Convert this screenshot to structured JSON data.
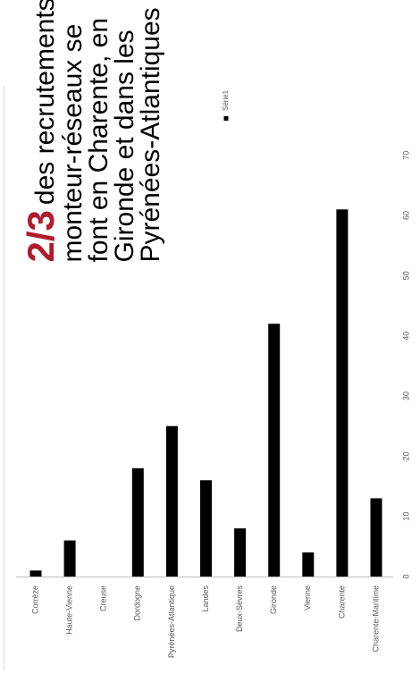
{
  "headline": {
    "highlight": "2/3",
    "lines": [
      "des recrutements de",
      "monteur-réseaux se",
      "font en Charente, en",
      "Gironde et dans les",
      "Pyrénées-Atlantiques"
    ]
  },
  "chart_data": {
    "type": "bar",
    "orientation": "horizontal",
    "categories": [
      "Corrèze",
      "Haute-Vienne",
      "Creuse",
      "Dordogne",
      "Pyrénées-Atlantique",
      "Landes",
      "Deux-Sèvres",
      "Gironde",
      "Vienne",
      "Charente",
      "Charente-Maritime"
    ],
    "series": [
      {
        "name": "Série1",
        "values": [
          1,
          6,
          0,
          18,
          25,
          16,
          8,
          42,
          4,
          61,
          13
        ]
      }
    ],
    "xlim": [
      0,
      70
    ],
    "ticks": [
      0,
      10,
      20,
      30,
      40,
      50,
      60,
      70
    ],
    "bar_color": "#000000",
    "grid": false,
    "legend_placement": "top-right"
  }
}
